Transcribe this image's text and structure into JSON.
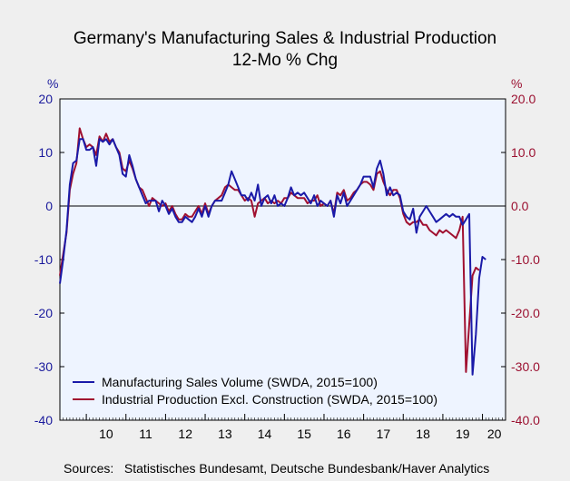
{
  "title": "Germany's Manufacturing Sales & Industrial Production",
  "subtitle": "12-Mo % Chg",
  "unit_left": "%",
  "unit_right": "%",
  "source": "Sources:   Statistisches Bundesamt, Deutsche Bundesbank/Haver Analytics",
  "colors": {
    "series1": "#1a1aa8",
    "series2": "#a01030",
    "plot_bg": "#eef4ff",
    "page_bg": "#efefef"
  },
  "chart_data": {
    "type": "line",
    "title": "Germany's Manufacturing Sales & Industrial Production",
    "subtitle": "12-Mo % Chg",
    "x_start": 2009.333,
    "x_step_months": 1,
    "xlim": [
      2009.333,
      2020.583
    ],
    "x_tick_labels": [
      "10",
      "11",
      "12",
      "13",
      "14",
      "15",
      "16",
      "17",
      "18",
      "19",
      "20"
    ],
    "ylim_left": [
      -40,
      20
    ],
    "ylim_right": [
      -40,
      20
    ],
    "y_ticks_left": [
      20,
      10,
      0,
      -10,
      -20,
      -30,
      -40
    ],
    "y_ticks_right": [
      "20.0",
      "10.0",
      "0.0",
      "-10.0",
      "-20.0",
      "-30.0",
      "-40.0"
    ],
    "grid": false,
    "zero_line": true,
    "legend_position": "bottom-left",
    "series": [
      {
        "name": "Manufacturing Sales Volume (SWDA, 2015=100)",
        "values": [
          -14.5,
          -10,
          -4.5,
          4,
          8,
          8.5,
          12.5,
          12.5,
          10.5,
          10.5,
          11,
          7.5,
          12.5,
          12,
          12.5,
          11.5,
          12.5,
          11,
          9.5,
          6,
          5.5,
          9.5,
          7.5,
          5,
          3.5,
          2,
          0.5,
          1,
          1,
          1,
          -1,
          1,
          0,
          -1.5,
          -0.5,
          -2,
          -3,
          -3,
          -2,
          -2.5,
          -3,
          -2,
          -0.5,
          -2,
          0,
          -2,
          0,
          1,
          1,
          1,
          2.5,
          4,
          6.5,
          5,
          3.5,
          2,
          2,
          1,
          2.5,
          1,
          4,
          0,
          1.5,
          2,
          0.5,
          2,
          0,
          0.5,
          0,
          1.5,
          3.5,
          2,
          2.5,
          2,
          2.5,
          1.5,
          0.5,
          2,
          0,
          1,
          0.5,
          0,
          1,
          -2,
          2,
          0.5,
          2.5,
          0,
          1,
          2,
          3,
          4,
          5.5,
          5.5,
          5.5,
          3.5,
          7,
          8.5,
          6,
          2,
          3.5,
          2,
          2.5,
          2,
          -1,
          -2,
          -2.5,
          -0.5,
          -5,
          -2,
          -1,
          0,
          -1,
          -2,
          -3,
          -2.5,
          -2,
          -1.5,
          -2,
          -1.5,
          -2,
          -2,
          -3.5,
          -2.5,
          -1.5,
          -31.5,
          -24,
          -13.5,
          -9.5,
          -10
        ]
      },
      {
        "name": "Industrial Production Excl. Construction (SWDA, 2015=100)",
        "values": [
          -13,
          -9,
          -5,
          3,
          6,
          8,
          14.5,
          12.5,
          11,
          11.5,
          11,
          9.5,
          13,
          12,
          13.5,
          12,
          12.5,
          11,
          10,
          7,
          6.5,
          8.5,
          7,
          5,
          3.5,
          3,
          1.5,
          0,
          1.5,
          1,
          0.5,
          0,
          0.5,
          -1,
          0,
          -1.5,
          -2.5,
          -2.5,
          -1.5,
          -2,
          -2,
          -1,
          0,
          -1.5,
          0.5,
          -1.5,
          0,
          1,
          1.5,
          2,
          3.5,
          4,
          3.5,
          3,
          3,
          2,
          1,
          1.5,
          1,
          -2,
          0.5,
          1,
          1.5,
          0.5,
          1,
          0.5,
          1,
          0.5,
          1.5,
          1.5,
          2.5,
          2,
          1.5,
          1.5,
          1.5,
          0.5,
          1,
          1,
          2,
          0,
          0.5,
          0,
          1,
          -1.5,
          2.5,
          2,
          3,
          1,
          1.5,
          2.5,
          3,
          4,
          4.5,
          4.5,
          4,
          3,
          6,
          6.5,
          4.5,
          3,
          2,
          3,
          3,
          1.5,
          -1.5,
          -3,
          -3.5,
          -3,
          -3,
          -2.5,
          -3.5,
          -3.5,
          -4.5,
          -5,
          -5.5,
          -4.5,
          -5,
          -4.5,
          -5,
          -5.5,
          -6,
          -4.5,
          -2,
          -31,
          -22,
          -13,
          -11.5,
          -12
        ]
      }
    ]
  }
}
